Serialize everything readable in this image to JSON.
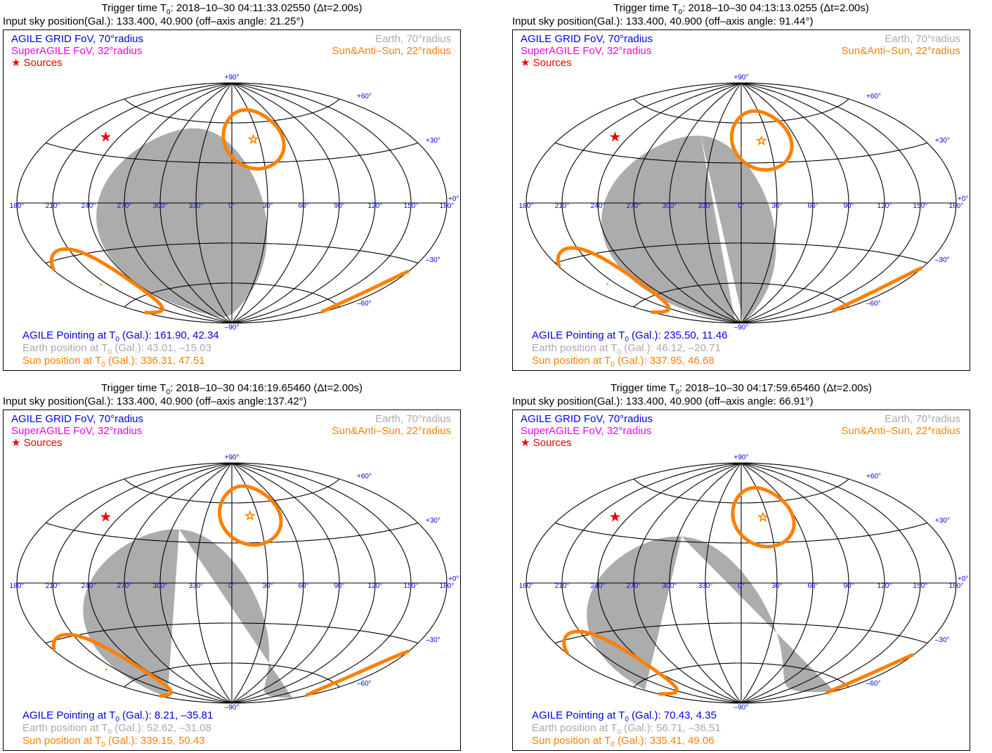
{
  "legend": {
    "grid_fov": "AGILE GRID FoV, 70°radius",
    "superagile_fov": "SuperAGILE FoV, 32°radius",
    "sources": "Sources",
    "earth": "Earth, 70°radius",
    "sun": "Sun&Anti–Sun, 22°radius"
  },
  "info_labels": {
    "pointing_prefix": "AGILE Pointing at T",
    "earth_prefix": "Earth position at T",
    "sun_prefix": "Sun position at T",
    "sub0": "0",
    "suffix": " (Gal.): "
  },
  "colors": {
    "grid_fov": "#0000ee",
    "superagile": "#ee00ee",
    "sources": "#ee0000",
    "earth": "#a8a8a8",
    "sun": "#ff8000"
  },
  "grid_labels": {
    "lon": [
      "180°",
      "150°",
      "120°",
      "90°",
      "60°",
      "30°",
      "0°",
      "330°",
      "300°",
      "270°",
      "240°",
      "210°",
      "180°"
    ],
    "lat_top": "+90°",
    "lat_60": "+60°",
    "lat_30": "+30°",
    "lat_0": "+0°",
    "lat_m30": "–30°",
    "lat_m60": "–60°",
    "lat_bot": "–90°"
  },
  "chart_data": [
    {
      "type": "scatter",
      "projection": "aitoff-galactic",
      "title_prefix": "Trigger time T",
      "title_rest": ": 2018–10–30 04:11:33.02550 (Δt=2.00s)",
      "input_line": "Input sky position(Gal.): 133.400, 40.900 (off–axis angle: 21.25°)",
      "pointing": "161.90,  42.34",
      "earth_pos": "43.01, –15.03",
      "sun_pos": "336.31,  47.51",
      "source": {
        "l": 133.4,
        "b": 40.9
      },
      "sun_center": {
        "l": 336.31,
        "b": 47.51
      },
      "earth_center": {
        "l": 43.01,
        "b": -15.03
      }
    },
    {
      "type": "scatter",
      "projection": "aitoff-galactic",
      "title_prefix": "Trigger time T",
      "title_rest": ": 2018–10–30 04:13:13.0255 (Δt=2.00s)",
      "input_line": "Input sky position(Gal.): 133.400, 40.900 (off–axis angle: 91.44°)",
      "pointing": "235.50,  11.46",
      "earth_pos": "46.12, –20.71",
      "sun_pos": "337.95,  46.68",
      "source": {
        "l": 133.4,
        "b": 40.9
      },
      "sun_center": {
        "l": 337.95,
        "b": 46.68
      },
      "earth_center": {
        "l": 46.12,
        "b": -20.71
      }
    },
    {
      "type": "scatter",
      "projection": "aitoff-galactic",
      "title_prefix": "Trigger time T",
      "title_rest": ": 2018–10–30 04:16:19.65460 (Δt=2.00s)",
      "input_line": "Input sky position(Gal.): 133.400, 40.900 (off–axis angle:137.42°)",
      "pointing": "8.21, –35.81",
      "earth_pos": "52.62, –31.08",
      "sun_pos": "339.15,  50.43",
      "source": {
        "l": 133.4,
        "b": 40.9
      },
      "sun_center": {
        "l": 339.15,
        "b": 50.43
      },
      "earth_center": {
        "l": 52.62,
        "b": -31.08
      }
    },
    {
      "type": "scatter",
      "projection": "aitoff-galactic",
      "title_prefix": "Trigger time T",
      "title_rest": ": 2018–10–30 04:17:59.65460 (Δt=2.00s)",
      "input_line": "Input sky position(Gal.): 133.400, 40.900 (off–axis angle: 66.91°)",
      "pointing": "70.43,  4.35",
      "earth_pos": "56.71, –36.51",
      "sun_pos": "335.41,  49.06",
      "source": {
        "l": 133.4,
        "b": 40.9
      },
      "sun_center": {
        "l": 335.41,
        "b": 49.06
      },
      "earth_center": {
        "l": 56.71,
        "b": -36.51
      }
    }
  ]
}
